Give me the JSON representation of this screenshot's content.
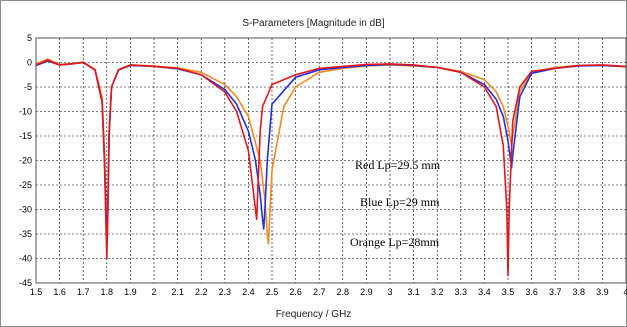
{
  "chart_data": {
    "type": "line",
    "title": "S-Parameters [Magnitude in dB]",
    "xlabel": "Frequency / GHz",
    "ylabel": "",
    "xlim": [
      1.5,
      4.0
    ],
    "ylim": [
      -45,
      5
    ],
    "xticks": [
      "1.5",
      "1.6",
      "1.7",
      "1.8",
      "1.9",
      "2",
      "2.1",
      "2.2",
      "2.3",
      "2.4",
      "2.5",
      "2.6",
      "2.7",
      "2.8",
      "2.9",
      "3",
      "3.1",
      "3.2",
      "3.3",
      "3.4",
      "3.5",
      "3.6",
      "3.7",
      "3.8",
      "3.9",
      "4"
    ],
    "yticks": [
      "5",
      "0",
      "-5",
      "-10",
      "-15",
      "-20",
      "-25",
      "-30",
      "-35",
      "-40",
      "-45"
    ],
    "grid": true,
    "annotations": [
      "Red Lp=29.5 mm",
      "Blue Lp=29 mm",
      "Orange Lp=28mm"
    ],
    "series": [
      {
        "color": "#e0171c",
        "x": [
          1.5,
          1.55,
          1.6,
          1.65,
          1.7,
          1.75,
          1.78,
          1.79,
          1.8,
          1.805,
          1.81,
          1.82,
          1.85,
          1.9,
          2.0,
          2.1,
          2.2,
          2.3,
          2.35,
          2.4,
          2.42,
          2.435,
          2.44,
          2.45,
          2.46,
          2.5,
          2.6,
          2.7,
          2.8,
          2.9,
          3.0,
          3.1,
          3.2,
          3.3,
          3.4,
          3.45,
          3.48,
          3.495,
          3.5,
          3.505,
          3.52,
          3.55,
          3.6,
          3.7,
          3.8,
          3.9,
          4.0
        ],
        "y": [
          -0.5,
          0.5,
          -0.5,
          -0.3,
          0.0,
          -1.5,
          -8,
          -20,
          -40,
          -30,
          -15,
          -5,
          -1.5,
          -0.5,
          -0.8,
          -1.2,
          -2.5,
          -6,
          -10,
          -18,
          -26,
          -32,
          -26,
          -14,
          -9,
          -4.5,
          -2.5,
          -1.2,
          -0.8,
          -0.4,
          -0.3,
          -0.5,
          -1.0,
          -2.0,
          -5.0,
          -9.0,
          -17,
          -30,
          -43.5,
          -30,
          -12,
          -5,
          -1.8,
          -1.2,
          -0.6,
          -0.5,
          -0.8
        ]
      },
      {
        "color": "#2233dd",
        "x": [
          1.5,
          1.55,
          1.6,
          1.65,
          1.7,
          1.75,
          1.78,
          1.79,
          1.8,
          1.805,
          1.81,
          1.82,
          1.85,
          1.9,
          2.0,
          2.1,
          2.2,
          2.3,
          2.35,
          2.4,
          2.43,
          2.45,
          2.46,
          2.465,
          2.47,
          2.48,
          2.5,
          2.6,
          2.7,
          2.8,
          2.9,
          3.0,
          3.1,
          3.2,
          3.3,
          3.4,
          3.45,
          3.48,
          3.5,
          3.51,
          3.515,
          3.52,
          3.55,
          3.6,
          3.7,
          3.8,
          3.9,
          4.0
        ],
        "y": [
          -0.6,
          0.3,
          -0.5,
          -0.3,
          0.0,
          -1.5,
          -8,
          -20,
          -37,
          -28,
          -14,
          -5,
          -1.5,
          -0.6,
          -0.8,
          -1.3,
          -2.5,
          -5.5,
          -8.5,
          -14,
          -20,
          -27,
          -32,
          -34,
          -30,
          -20,
          -8.5,
          -3.0,
          -1.5,
          -1.0,
          -0.6,
          -0.4,
          -0.6,
          -1.0,
          -2.0,
          -4.5,
          -7.5,
          -11,
          -16,
          -19.5,
          -21.5,
          -19,
          -7,
          -2.2,
          -1.2,
          -0.7,
          -0.6,
          -0.8
        ]
      },
      {
        "color": "#f08a24",
        "x": [
          1.5,
          1.55,
          1.6,
          1.65,
          1.7,
          1.75,
          1.78,
          1.79,
          1.8,
          1.805,
          1.81,
          1.82,
          1.85,
          1.9,
          2.0,
          2.1,
          2.2,
          2.3,
          2.35,
          2.4,
          2.45,
          2.47,
          2.48,
          2.485,
          2.49,
          2.5,
          2.55,
          2.6,
          2.7,
          2.8,
          2.9,
          3.0,
          3.1,
          3.2,
          3.3,
          3.4,
          3.45,
          3.48,
          3.5,
          3.51,
          3.515,
          3.52,
          3.55,
          3.6,
          3.7,
          3.8,
          3.9,
          4.0
        ],
        "y": [
          -0.3,
          0.7,
          -0.4,
          -0.2,
          0.1,
          -1.4,
          -7,
          -18,
          -34,
          -27,
          -14,
          -5,
          -1.4,
          -0.5,
          -0.7,
          -1.1,
          -2.0,
          -4.5,
          -7.0,
          -11,
          -20,
          -28,
          -35,
          -37,
          -32,
          -22,
          -9,
          -5.0,
          -2.0,
          -1.2,
          -0.7,
          -0.5,
          -0.7,
          -1.0,
          -1.8,
          -3.5,
          -6,
          -9,
          -13,
          -15.5,
          -17,
          -15,
          -6,
          -2.0,
          -1.0,
          -0.6,
          -0.6,
          -0.9
        ]
      }
    ]
  }
}
